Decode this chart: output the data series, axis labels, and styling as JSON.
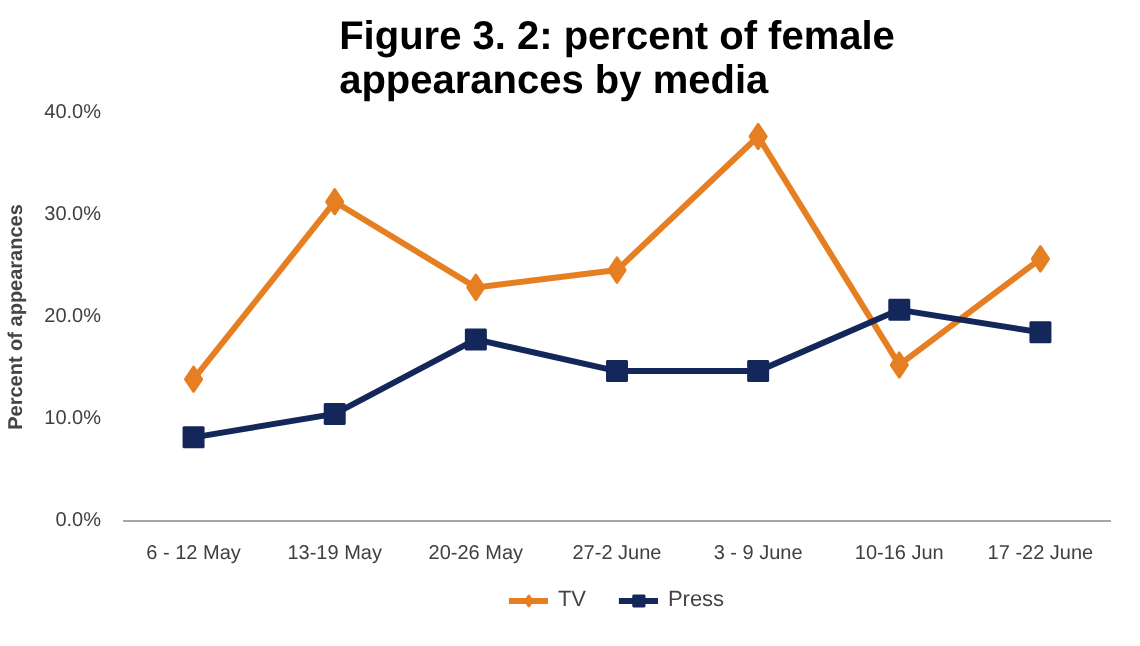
{
  "chart_data": {
    "type": "line",
    "title": "Figure 3. 2: percent of female\nappearances by media",
    "ylabel": "Percent of appearances",
    "categories": [
      "6 - 12 May",
      "13-19 May",
      "20-26 May",
      "27-2 June",
      "3 - 9 June",
      "10-16 Jun",
      "17 -22 June"
    ],
    "series": [
      {
        "name": "TV",
        "color": "#e67e22",
        "marker": "diamond",
        "values": [
          13.9,
          31.3,
          22.9,
          24.6,
          37.7,
          15.3,
          25.7
        ]
      },
      {
        "name": "Press",
        "color": "#14275a",
        "marker": "square",
        "values": [
          8.2,
          10.5,
          17.8,
          14.7,
          14.7,
          20.7,
          18.5
        ]
      }
    ],
    "ylim": [
      0,
      40
    ],
    "yticks": [
      {
        "value": 0,
        "label": "0.0%"
      },
      {
        "value": 10,
        "label": "10.0%"
      },
      {
        "value": 20,
        "label": "20.0%"
      },
      {
        "value": 30,
        "label": "30.0%"
      },
      {
        "value": 40,
        "label": "40.0%"
      }
    ],
    "grid": false,
    "legend": "bottom",
    "line_style": "solid"
  }
}
